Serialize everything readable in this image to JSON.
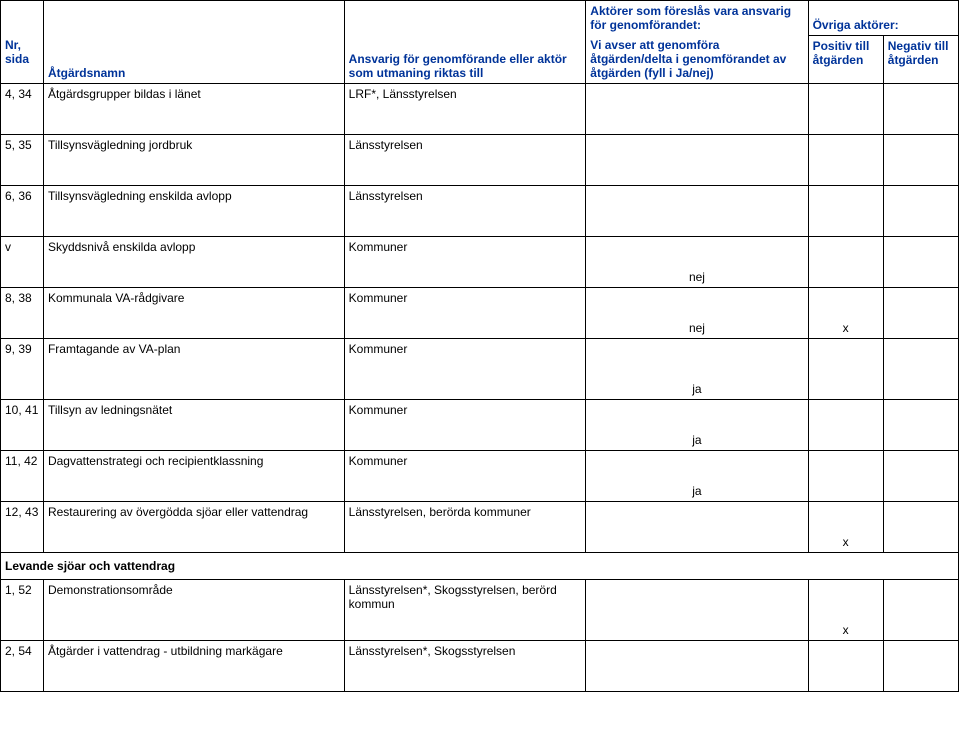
{
  "header": {
    "group_title": "Aktörer som föreslås vara ansvarig för genomförandet:",
    "other_actors": "Övriga aktörer:",
    "nr_sida": "Nr, sida",
    "atgardsnamn": "Åtgärdsnamn",
    "responsible": "Ansvarig för genomförande eller aktör som utmaning riktas till",
    "implement": "Vi avser att genomföra åtgärden/delta i genomförandet av åtgärden (fyll i Ja/nej)",
    "positive": "Positiv till åtgärden",
    "negative": "Negativ till åtgärden"
  },
  "rows": {
    "r434": {
      "nr": "4, 34",
      "name": "Åtgärdsgrupper bildas i länet",
      "resp": "LRF*, Länsstyrelsen"
    },
    "r535": {
      "nr": "5, 35",
      "name": "Tillsynsvägledning jordbruk",
      "resp": "Länsstyrelsen"
    },
    "r636": {
      "nr": "6, 36",
      "name": "Tillsynsvägledning enskilda avlopp",
      "resp": "Länsstyrelsen"
    },
    "rv": {
      "nr": "v",
      "name": "Skyddsnivå enskilda avlopp",
      "resp": "Kommuner",
      "impl": "nej"
    },
    "r838": {
      "nr": "8, 38",
      "name": "Kommunala VA-rådgivare",
      "resp": "Kommuner",
      "impl": "nej",
      "pos": "x"
    },
    "r939": {
      "nr": "9, 39",
      "name": "Framtagande av VA-plan",
      "resp": "Kommuner",
      "impl": "ja"
    },
    "r1041": {
      "nr": "10, 41",
      "name": "Tillsyn av ledningsnätet",
      "resp": "Kommuner",
      "impl": "ja"
    },
    "r1142": {
      "nr": "11, 42",
      "name": "Dagvattenstrategi och recipientklassning",
      "resp": "Kommuner",
      "impl": "ja"
    },
    "r1243": {
      "nr": "12, 43",
      "name": "Restaurering av övergödda sjöar eller vattendrag",
      "resp": "Länsstyrelsen, berörda kommuner",
      "pos": "x"
    },
    "r152": {
      "nr": "1, 52",
      "name": "Demonstrationsområde",
      "resp": "Länsstyrelsen*, Skogsstyrelsen, berörd kommun",
      "pos": "x"
    },
    "r254": {
      "nr": "2, 54",
      "name": "Åtgärder i vattendrag - utbildning markägare",
      "resp": "Länsstyrelsen*, Skogsstyrelsen"
    }
  },
  "section": {
    "levande": "Levande sjöar och vattendrag"
  },
  "colors": {
    "header_text": "#003399",
    "border": "#000000",
    "background": "#ffffff"
  }
}
